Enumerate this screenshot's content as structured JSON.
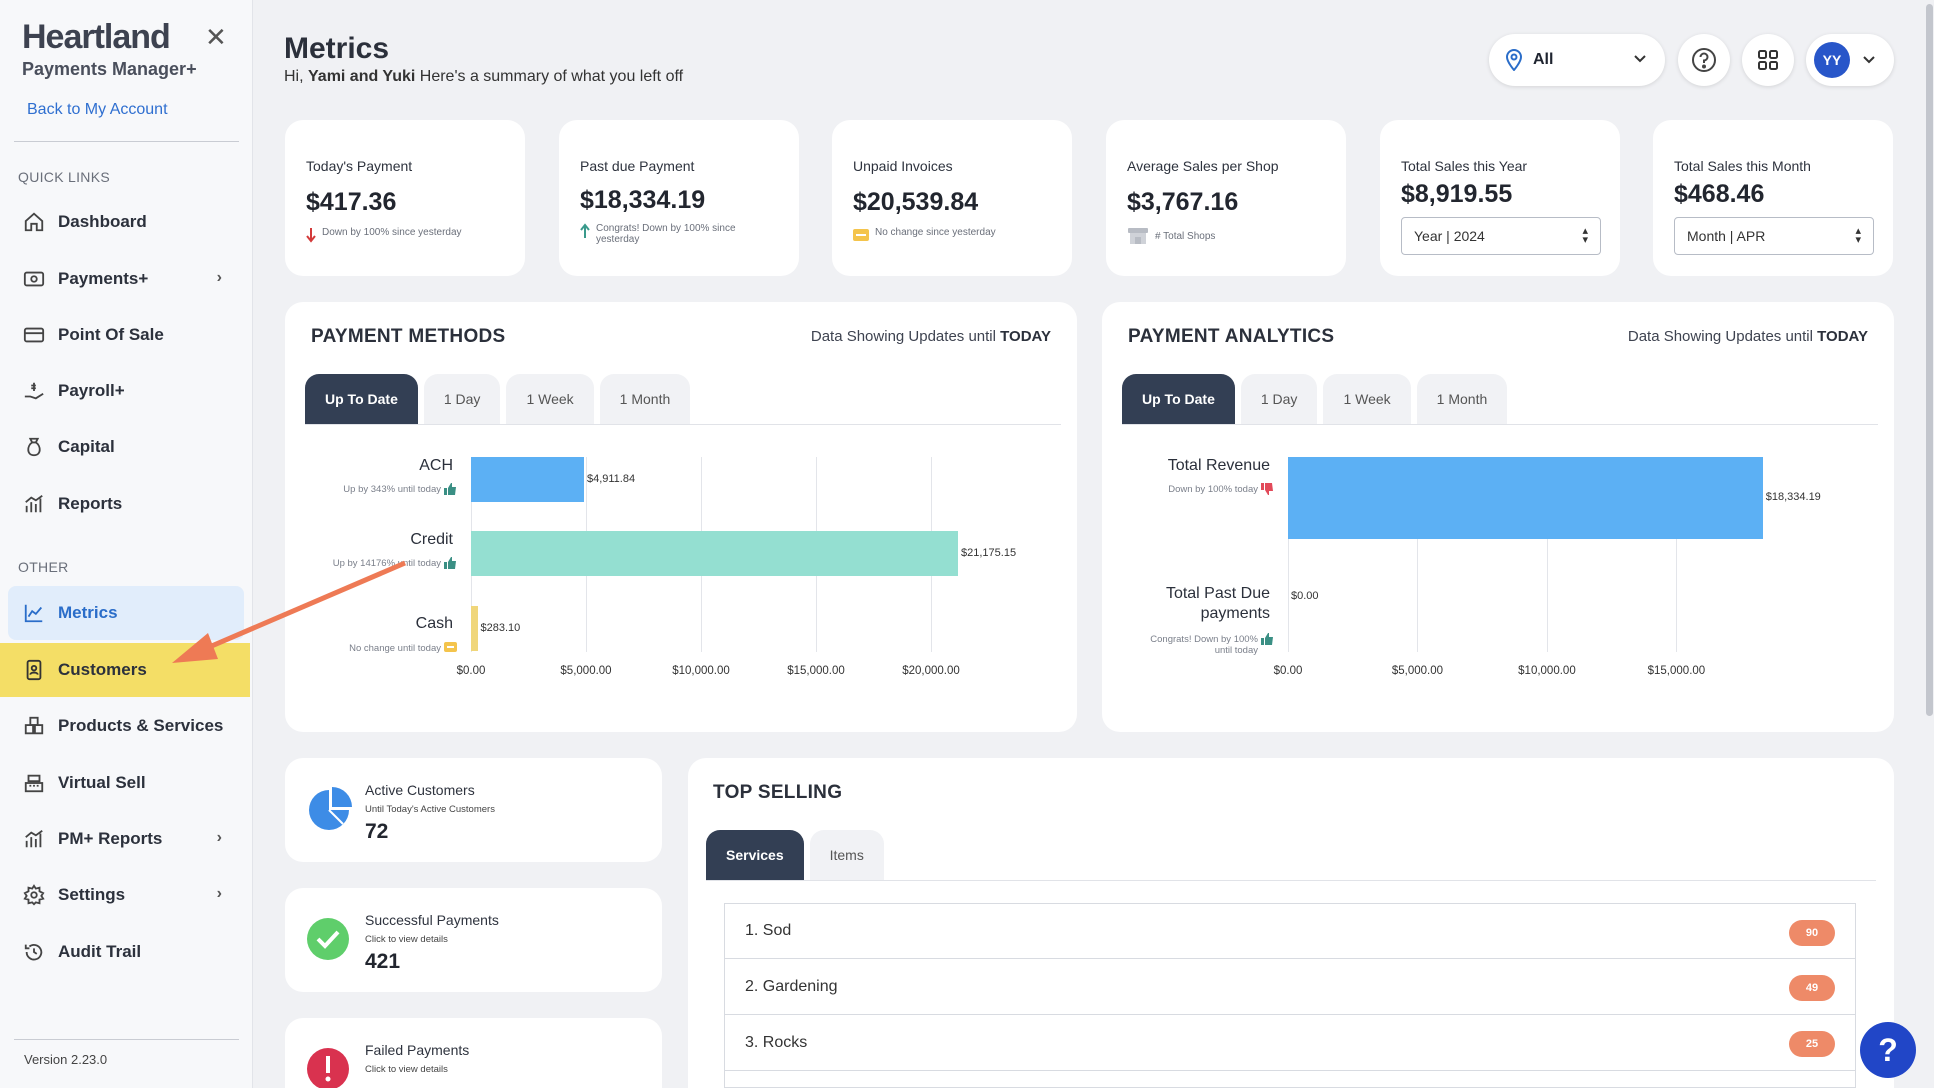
{
  "sidebar": {
    "brand": "Heartland",
    "brand_sub": "Payments Manager+",
    "back_link": "Back to My Account",
    "quick_links_label": "QUICK LINKS",
    "other_label": "OTHER",
    "quick_links": [
      {
        "label": "Dashboard",
        "icon": "home-icon"
      },
      {
        "label": "Payments+",
        "icon": "payments-icon",
        "has_submenu": true
      },
      {
        "label": "Point Of Sale",
        "icon": "card-icon"
      },
      {
        "label": "Payroll+",
        "icon": "payroll-icon"
      },
      {
        "label": "Capital",
        "icon": "money-bag-icon"
      },
      {
        "label": "Reports",
        "icon": "bar-chart-icon"
      }
    ],
    "other": [
      {
        "label": "Metrics",
        "icon": "line-chart-icon",
        "state": "active"
      },
      {
        "label": "Customers",
        "icon": "contact-book-icon",
        "state": "highlighted"
      },
      {
        "label": "Products & Services",
        "icon": "boxes-icon"
      },
      {
        "label": "Virtual Sell",
        "icon": "register-icon"
      },
      {
        "label": "PM+ Reports",
        "icon": "bar-chart-icon",
        "has_submenu": true
      },
      {
        "label": "Settings",
        "icon": "gear-icon",
        "has_submenu": true
      },
      {
        "label": "Audit Trail",
        "icon": "history-icon"
      }
    ],
    "version": "Version 2.23.0"
  },
  "header": {
    "title": "Metrics",
    "greeting_prefix": "Hi, ",
    "greeting_name": "Yami and Yuki",
    "greeting_suffix": " Here's a summary of what you left off",
    "location": "All",
    "avatar_initials": "YY"
  },
  "stats": [
    {
      "label": "Today's Payment",
      "value": "$417.36",
      "note": "Down by 100% since yesterday",
      "note_icon": "arrow-down-icon"
    },
    {
      "label": "Past due Payment",
      "value": "$18,334.19",
      "note": "Congrats! Down by 100% since yesterday",
      "note_icon": "arrow-up-icon"
    },
    {
      "label": "Unpaid Invoices",
      "value": "$20,539.84",
      "note": "No change since yesterday",
      "note_icon": "no-change-icon"
    },
    {
      "label": "Average Sales per Shop",
      "value": "$3,767.16",
      "note": "# Total Shops",
      "note_icon": "shop-icon"
    },
    {
      "label": "Total Sales this Year",
      "value": "$8,919.55",
      "select": "Year | 2024"
    },
    {
      "label": "Total Sales this Month",
      "value": "$468.46",
      "select": "Month | APR"
    }
  ],
  "payment_methods": {
    "title": "PAYMENT METHODS",
    "updates_prefix": "Data Showing Updates until ",
    "updates_bold": "TODAY",
    "tabs": [
      "Up To Date",
      "1 Day",
      "1 Week",
      "1 Month"
    ],
    "active_tab": "Up To Date",
    "notes": [
      "Up by 343% until today",
      "Up by 14176% until today",
      "No change until today"
    ],
    "colors": [
      "#5cb0f4",
      "#94dfd1",
      "#f0d67a"
    ]
  },
  "payment_analytics": {
    "title": "PAYMENT ANALYTICS",
    "updates_prefix": "Data Showing Updates until ",
    "updates_bold": "TODAY",
    "tabs": [
      "Up To Date",
      "1 Day",
      "1 Week",
      "1 Month"
    ],
    "active_tab": "Up To Date",
    "notes": [
      "Down by 100% today",
      "Congrats! Down by 100% until today"
    ],
    "category_lines": [
      [
        "Total Revenue"
      ],
      [
        "Total Past Due",
        "payments"
      ]
    ],
    "colors": [
      "#5cb0f4"
    ]
  },
  "chart_data": [
    {
      "type": "bar",
      "orientation": "horizontal",
      "categories": [
        "ACH",
        "Credit",
        "Cash"
      ],
      "values": [
        4911.84,
        21175.15,
        283.1
      ],
      "value_labels": [
        "$4,911.84",
        "$21,175.15",
        "$283.10"
      ],
      "xlim": [
        0,
        22000
      ],
      "xticks": [
        0,
        5000,
        10000,
        15000,
        20000
      ],
      "xtick_labels": [
        "$0.00",
        "$5,000.00",
        "$10,000.00",
        "$15,000.00",
        "$20,000.00"
      ],
      "grid": true
    },
    {
      "type": "bar",
      "orientation": "horizontal",
      "categories": [
        "Total Revenue",
        "Total Past Due payments"
      ],
      "values": [
        18334.19,
        0
      ],
      "value_labels": [
        "$18,334.19",
        "$0.00"
      ],
      "xlim": [
        0,
        19000
      ],
      "xticks": [
        0,
        5000,
        10000,
        15000
      ],
      "xtick_labels": [
        "$0.00",
        "$5,000.00",
        "$10,000.00",
        "$15,000.00"
      ],
      "grid": true
    }
  ],
  "mini_cards": [
    {
      "title": "Active Customers",
      "sub": "Until Today's Active Customers",
      "value": "72",
      "icon": "pie-chart-icon"
    },
    {
      "title": "Successful Payments",
      "sub": "Click to view details",
      "value": "421",
      "icon": "check-circle-icon"
    },
    {
      "title": "Failed Payments",
      "sub": "Click to view details",
      "value": "",
      "icon": "alert-circle-icon"
    }
  ],
  "top_selling": {
    "title": "TOP SELLING",
    "tabs": [
      "Services",
      "Items"
    ],
    "active_tab": "Services",
    "rows": [
      {
        "label": "1. Sod",
        "count": "90"
      },
      {
        "label": "2. Gardening",
        "count": "49"
      },
      {
        "label": "3. Rocks",
        "count": "25"
      }
    ]
  }
}
